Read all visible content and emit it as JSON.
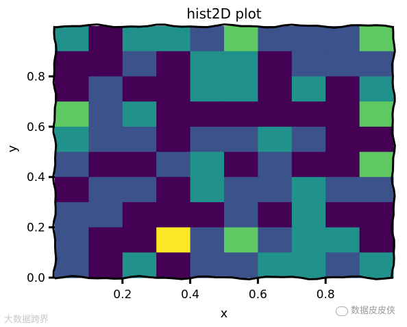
{
  "chart_data": {
    "type": "heatmap",
    "title": "hist2D plot",
    "xlabel": "x",
    "ylabel": "y",
    "xlim": [
      0.0,
      1.0
    ],
    "ylim": [
      0.0,
      1.0
    ],
    "xticks": [
      0.2,
      0.4,
      0.6,
      0.8
    ],
    "xtick_labels": [
      "0.2",
      "0.4",
      "0.6",
      "0.8"
    ],
    "yticks": [
      0.0,
      0.2,
      0.4,
      0.6,
      0.8
    ],
    "ytick_labels": [
      "0.0",
      "0.2",
      "0.4",
      "0.6",
      "0.8"
    ],
    "bins": 10,
    "colormap": "viridis",
    "count_range": [
      0,
      4
    ],
    "counts_rows_top_to_bottom": [
      [
        2,
        0,
        2,
        2,
        1,
        3,
        1,
        1,
        1,
        3
      ],
      [
        0,
        0,
        1,
        0,
        2,
        2,
        0,
        1,
        1,
        1
      ],
      [
        0,
        1,
        0,
        0,
        2,
        2,
        0,
        2,
        0,
        2
      ],
      [
        3,
        1,
        2,
        0,
        0,
        0,
        0,
        0,
        0,
        3
      ],
      [
        2,
        1,
        1,
        0,
        1,
        1,
        2,
        1,
        0,
        0
      ],
      [
        1,
        0,
        0,
        1,
        2,
        0,
        1,
        0,
        0,
        3
      ],
      [
        0,
        1,
        1,
        0,
        2,
        1,
        1,
        2,
        1,
        1
      ],
      [
        1,
        1,
        0,
        0,
        0,
        1,
        0,
        2,
        0,
        0
      ],
      [
        1,
        0,
        0,
        4,
        1,
        3,
        1,
        2,
        2,
        0
      ],
      [
        1,
        0,
        2,
        0,
        1,
        1,
        2,
        2,
        1,
        2
      ]
    ],
    "grid": false
  },
  "watermarks": {
    "left": "大数据跨界",
    "right": "数据皮皮侠"
  },
  "colors": {
    "viridis_0": "#440154",
    "viridis_1": "#3b528b",
    "viridis_2": "#21918c",
    "viridis_3": "#5ec962",
    "viridis_4": "#fde725"
  }
}
